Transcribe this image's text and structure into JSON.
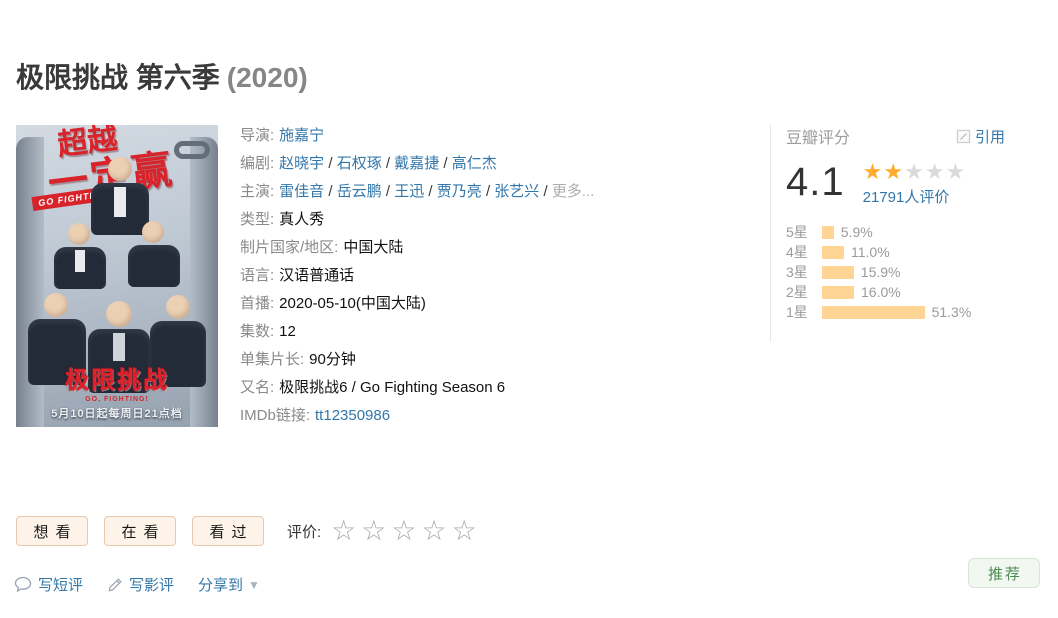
{
  "header": {
    "title": "极限挑战 第六季",
    "year": "(2020)"
  },
  "poster": {
    "slogan_line1": "超越",
    "slogan_line2": "一定赢",
    "banner": "GO FIGHTING!",
    "logo": "极限挑战",
    "logo_sub": "GO, FIGHTING!",
    "premiere_line": "5月10日起每周日21点档"
  },
  "info": {
    "rows": [
      {
        "label": "导演:",
        "parts": [
          {
            "t": "施嘉宁",
            "k": "link"
          }
        ]
      },
      {
        "label": "编剧:",
        "parts": [
          {
            "t": "赵晓宇",
            "k": "link"
          },
          {
            "t": " / ",
            "k": "sep"
          },
          {
            "t": "石权琢",
            "k": "link"
          },
          {
            "t": " / ",
            "k": "sep"
          },
          {
            "t": "戴嘉捷",
            "k": "link"
          },
          {
            "t": " / ",
            "k": "sep"
          },
          {
            "t": "高仁杰",
            "k": "link"
          }
        ]
      },
      {
        "label": "主演:",
        "parts": [
          {
            "t": "雷佳音",
            "k": "link"
          },
          {
            "t": " / ",
            "k": "sep"
          },
          {
            "t": "岳云鹏",
            "k": "link"
          },
          {
            "t": " / ",
            "k": "sep"
          },
          {
            "t": "王迅",
            "k": "link"
          },
          {
            "t": " / ",
            "k": "sep"
          },
          {
            "t": "贾乃亮",
            "k": "link"
          },
          {
            "t": " / ",
            "k": "sep"
          },
          {
            "t": "张艺兴",
            "k": "link"
          },
          {
            "t": " / ",
            "k": "sep"
          },
          {
            "t": "更多...",
            "k": "muted"
          }
        ]
      },
      {
        "label": "类型:",
        "parts": [
          {
            "t": "真人秀",
            "k": "text"
          }
        ]
      },
      {
        "label": "制片国家/地区:",
        "parts": [
          {
            "t": "中国大陆",
            "k": "text"
          }
        ]
      },
      {
        "label": "语言:",
        "parts": [
          {
            "t": "汉语普通话",
            "k": "text"
          }
        ]
      },
      {
        "label": "首播:",
        "parts": [
          {
            "t": "2020-05-10(中国大陆)",
            "k": "text"
          }
        ]
      },
      {
        "label": "集数:",
        "parts": [
          {
            "t": "12",
            "k": "text"
          }
        ]
      },
      {
        "label": "单集片长:",
        "parts": [
          {
            "t": "90分钟",
            "k": "text"
          }
        ]
      },
      {
        "label": "又名:",
        "parts": [
          {
            "t": "极限挑战6 / Go Fighting Season 6",
            "k": "text"
          }
        ]
      },
      {
        "label": "IMDb链接:",
        "parts": [
          {
            "t": "tt12350986",
            "k": "link"
          }
        ]
      }
    ]
  },
  "rating": {
    "panel_label": "豆瓣评分",
    "cite_label": "引用",
    "score": "4.1",
    "stars_filled": 2,
    "stars_total": 5,
    "votes_label": "21791人评价",
    "distribution": [
      {
        "label": "5星",
        "pct": "5.9%",
        "value": 5.9
      },
      {
        "label": "4星",
        "pct": "11.0%",
        "value": 11.0
      },
      {
        "label": "3星",
        "pct": "15.9%",
        "value": 15.9
      },
      {
        "label": "2星",
        "pct": "16.0%",
        "value": 16.0
      },
      {
        "label": "1星",
        "pct": "51.3%",
        "value": 51.3
      }
    ]
  },
  "actions": {
    "wish": "想看",
    "watching": "在看",
    "watched": "看过",
    "rate_label": "评价:",
    "rate_stars_total": 5
  },
  "footer": {
    "short_review": "写短评",
    "review": "写影评",
    "share": "分享到",
    "recommend": "推荐"
  },
  "colors": {
    "link_blue": "#3377aa",
    "star_orange": "#ffab2d",
    "bar_orange": "#ffd596",
    "button_peach_bg": "#fdf3e9",
    "button_peach_border": "#e9c8ac",
    "recommend_green": "#4c8b51",
    "poster_red": "#d8232b"
  }
}
